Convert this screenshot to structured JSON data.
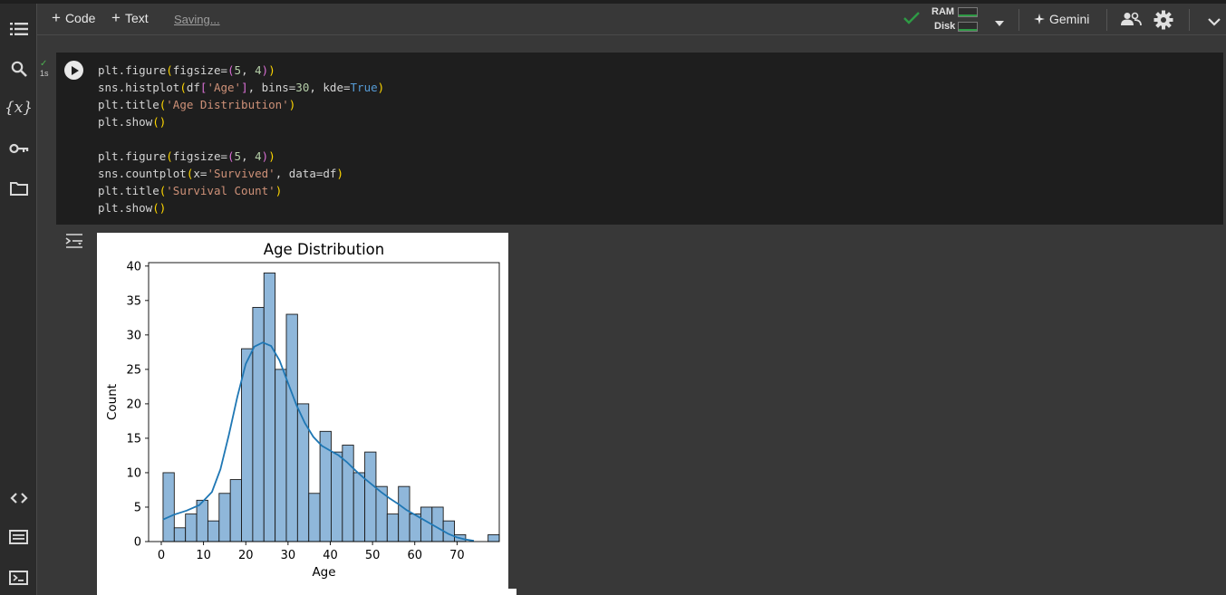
{
  "toolbar": {
    "add_code_label": "Code",
    "add_text_label": "Text",
    "saving_label": "Saving...",
    "ram_label": "RAM",
    "disk_label": "Disk",
    "gemini_label": "Gemini"
  },
  "rail": {
    "icons": [
      "toc-icon",
      "search-icon",
      "variables-icon",
      "secrets-icon",
      "files-icon",
      "code-snippets-icon",
      "command-palette-icon",
      "terminal-icon"
    ],
    "variables_glyph": "{x}"
  },
  "cell": {
    "exec_time": "1s",
    "lines": [
      [
        [
          "plt.figure",
          ""
        ],
        [
          "(",
          "p1"
        ],
        [
          "figsize=",
          ""
        ],
        [
          "(",
          "p2"
        ],
        [
          "5",
          "n"
        ],
        [
          ", ",
          ""
        ],
        [
          "4",
          "n"
        ],
        [
          ")",
          "p2"
        ],
        [
          ")",
          "p1"
        ]
      ],
      [
        [
          "sns.histplot",
          ""
        ],
        [
          "(",
          "p1"
        ],
        [
          "df",
          ""
        ],
        [
          "[",
          "p2"
        ],
        [
          "'Age'",
          "s"
        ],
        [
          "]",
          "p2"
        ],
        [
          ", bins=",
          ""
        ],
        [
          "30",
          "n"
        ],
        [
          ", kde=",
          ""
        ],
        [
          "True",
          "k"
        ],
        [
          ")",
          "p1"
        ]
      ],
      [
        [
          "plt.title",
          ""
        ],
        [
          "(",
          "p1"
        ],
        [
          "'Age Distribution'",
          "s"
        ],
        [
          ")",
          "p1"
        ]
      ],
      [
        [
          "plt.show",
          ""
        ],
        [
          "()",
          "p1"
        ]
      ],
      [],
      [
        [
          "plt.figure",
          ""
        ],
        [
          "(",
          "p1"
        ],
        [
          "figsize=",
          ""
        ],
        [
          "(",
          "p2"
        ],
        [
          "5",
          "n"
        ],
        [
          ", ",
          ""
        ],
        [
          "4",
          "n"
        ],
        [
          ")",
          "p2"
        ],
        [
          ")",
          "p1"
        ]
      ],
      [
        [
          "sns.countplot",
          ""
        ],
        [
          "(",
          "p1"
        ],
        [
          "x=",
          ""
        ],
        [
          "'Survived'",
          "s"
        ],
        [
          ", data=df",
          ""
        ],
        [
          ")",
          "p1"
        ]
      ],
      [
        [
          "plt.title",
          ""
        ],
        [
          "(",
          "p1"
        ],
        [
          "'Survival Count'",
          "s"
        ],
        [
          ")",
          "p1"
        ]
      ],
      [
        [
          "plt.show",
          ""
        ],
        [
          "()",
          "p1"
        ]
      ]
    ]
  },
  "chart_data": {
    "type": "bar",
    "title": "Age Distribution",
    "xlabel": "Age",
    "ylabel": "Count",
    "bin_edges_start": 0.42,
    "bin_width": 2.6527,
    "counts": [
      10,
      2,
      4,
      6,
      3,
      7,
      9,
      28,
      34,
      39,
      25,
      33,
      20,
      7,
      16,
      13,
      14,
      10,
      13,
      8,
      4,
      8,
      4,
      5,
      5,
      3,
      1,
      0,
      0,
      1
    ],
    "kde": [
      [
        0.4,
        3.2
      ],
      [
        3,
        3.9
      ],
      [
        6,
        4.5
      ],
      [
        9,
        5.3
      ],
      [
        12,
        7.2
      ],
      [
        14,
        10.5
      ],
      [
        16,
        15.5
      ],
      [
        18,
        21
      ],
      [
        20,
        25.8
      ],
      [
        22,
        28.3
      ],
      [
        24,
        28.9
      ],
      [
        26,
        28.4
      ],
      [
        28,
        26.3
      ],
      [
        30,
        23
      ],
      [
        32,
        19.8
      ],
      [
        34,
        17.2
      ],
      [
        36,
        15.2
      ],
      [
        38,
        13.9
      ],
      [
        40,
        13.2
      ],
      [
        42,
        12.5
      ],
      [
        44,
        11.5
      ],
      [
        46,
        10.3
      ],
      [
        48,
        9.2
      ],
      [
        50,
        8.2
      ],
      [
        52,
        7.2
      ],
      [
        54,
        6.3
      ],
      [
        56,
        5.5
      ],
      [
        58,
        4.6
      ],
      [
        60,
        3.9
      ],
      [
        62,
        3.2
      ],
      [
        64,
        2.5
      ],
      [
        66,
        1.8
      ],
      [
        68,
        1.1
      ],
      [
        70,
        0.6
      ],
      [
        72,
        0.3
      ],
      [
        74,
        0.1
      ]
    ],
    "xlim": [
      -3,
      80
    ],
    "ylim": [
      0,
      40.5
    ],
    "xticks": [
      0,
      10,
      20,
      30,
      40,
      50,
      60,
      70
    ],
    "yticks": [
      0,
      5,
      10,
      15,
      20,
      25,
      30,
      35,
      40
    ],
    "bar_color": "#8fb7da",
    "bar_edge": "#1a1a1a",
    "line_color": "#1f77b4",
    "grid": false
  },
  "colors": {
    "accent_ok": "#2e9a45"
  }
}
